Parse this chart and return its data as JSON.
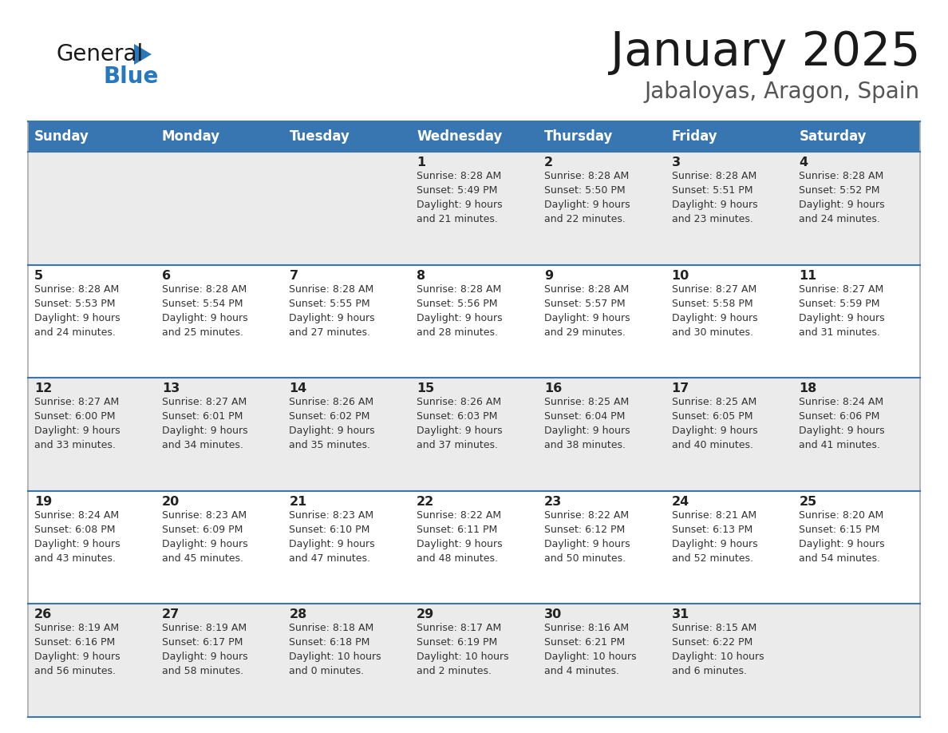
{
  "title": "January 2025",
  "subtitle": "Jabaloyas, Aragon, Spain",
  "days_of_week": [
    "Sunday",
    "Monday",
    "Tuesday",
    "Wednesday",
    "Thursday",
    "Friday",
    "Saturday"
  ],
  "header_bg": "#3776b0",
  "header_text": "#ffffff",
  "row_bg_odd": "#ebebeb",
  "row_bg_even": "#ffffff",
  "divider_color": "#3776b0",
  "cell_text_color": "#333333",
  "day_num_color": "#222222",
  "weeks": [
    [
      {
        "day": null,
        "info": null
      },
      {
        "day": null,
        "info": null
      },
      {
        "day": null,
        "info": null
      },
      {
        "day": 1,
        "info": "Sunrise: 8:28 AM\nSunset: 5:49 PM\nDaylight: 9 hours\nand 21 minutes."
      },
      {
        "day": 2,
        "info": "Sunrise: 8:28 AM\nSunset: 5:50 PM\nDaylight: 9 hours\nand 22 minutes."
      },
      {
        "day": 3,
        "info": "Sunrise: 8:28 AM\nSunset: 5:51 PM\nDaylight: 9 hours\nand 23 minutes."
      },
      {
        "day": 4,
        "info": "Sunrise: 8:28 AM\nSunset: 5:52 PM\nDaylight: 9 hours\nand 24 minutes."
      }
    ],
    [
      {
        "day": 5,
        "info": "Sunrise: 8:28 AM\nSunset: 5:53 PM\nDaylight: 9 hours\nand 24 minutes."
      },
      {
        "day": 6,
        "info": "Sunrise: 8:28 AM\nSunset: 5:54 PM\nDaylight: 9 hours\nand 25 minutes."
      },
      {
        "day": 7,
        "info": "Sunrise: 8:28 AM\nSunset: 5:55 PM\nDaylight: 9 hours\nand 27 minutes."
      },
      {
        "day": 8,
        "info": "Sunrise: 8:28 AM\nSunset: 5:56 PM\nDaylight: 9 hours\nand 28 minutes."
      },
      {
        "day": 9,
        "info": "Sunrise: 8:28 AM\nSunset: 5:57 PM\nDaylight: 9 hours\nand 29 minutes."
      },
      {
        "day": 10,
        "info": "Sunrise: 8:27 AM\nSunset: 5:58 PM\nDaylight: 9 hours\nand 30 minutes."
      },
      {
        "day": 11,
        "info": "Sunrise: 8:27 AM\nSunset: 5:59 PM\nDaylight: 9 hours\nand 31 minutes."
      }
    ],
    [
      {
        "day": 12,
        "info": "Sunrise: 8:27 AM\nSunset: 6:00 PM\nDaylight: 9 hours\nand 33 minutes."
      },
      {
        "day": 13,
        "info": "Sunrise: 8:27 AM\nSunset: 6:01 PM\nDaylight: 9 hours\nand 34 minutes."
      },
      {
        "day": 14,
        "info": "Sunrise: 8:26 AM\nSunset: 6:02 PM\nDaylight: 9 hours\nand 35 minutes."
      },
      {
        "day": 15,
        "info": "Sunrise: 8:26 AM\nSunset: 6:03 PM\nDaylight: 9 hours\nand 37 minutes."
      },
      {
        "day": 16,
        "info": "Sunrise: 8:25 AM\nSunset: 6:04 PM\nDaylight: 9 hours\nand 38 minutes."
      },
      {
        "day": 17,
        "info": "Sunrise: 8:25 AM\nSunset: 6:05 PM\nDaylight: 9 hours\nand 40 minutes."
      },
      {
        "day": 18,
        "info": "Sunrise: 8:24 AM\nSunset: 6:06 PM\nDaylight: 9 hours\nand 41 minutes."
      }
    ],
    [
      {
        "day": 19,
        "info": "Sunrise: 8:24 AM\nSunset: 6:08 PM\nDaylight: 9 hours\nand 43 minutes."
      },
      {
        "day": 20,
        "info": "Sunrise: 8:23 AM\nSunset: 6:09 PM\nDaylight: 9 hours\nand 45 minutes."
      },
      {
        "day": 21,
        "info": "Sunrise: 8:23 AM\nSunset: 6:10 PM\nDaylight: 9 hours\nand 47 minutes."
      },
      {
        "day": 22,
        "info": "Sunrise: 8:22 AM\nSunset: 6:11 PM\nDaylight: 9 hours\nand 48 minutes."
      },
      {
        "day": 23,
        "info": "Sunrise: 8:22 AM\nSunset: 6:12 PM\nDaylight: 9 hours\nand 50 minutes."
      },
      {
        "day": 24,
        "info": "Sunrise: 8:21 AM\nSunset: 6:13 PM\nDaylight: 9 hours\nand 52 minutes."
      },
      {
        "day": 25,
        "info": "Sunrise: 8:20 AM\nSunset: 6:15 PM\nDaylight: 9 hours\nand 54 minutes."
      }
    ],
    [
      {
        "day": 26,
        "info": "Sunrise: 8:19 AM\nSunset: 6:16 PM\nDaylight: 9 hours\nand 56 minutes."
      },
      {
        "day": 27,
        "info": "Sunrise: 8:19 AM\nSunset: 6:17 PM\nDaylight: 9 hours\nand 58 minutes."
      },
      {
        "day": 28,
        "info": "Sunrise: 8:18 AM\nSunset: 6:18 PM\nDaylight: 10 hours\nand 0 minutes."
      },
      {
        "day": 29,
        "info": "Sunrise: 8:17 AM\nSunset: 6:19 PM\nDaylight: 10 hours\nand 2 minutes."
      },
      {
        "day": 30,
        "info": "Sunrise: 8:16 AM\nSunset: 6:21 PM\nDaylight: 10 hours\nand 4 minutes."
      },
      {
        "day": 31,
        "info": "Sunrise: 8:15 AM\nSunset: 6:22 PM\nDaylight: 10 hours\nand 6 minutes."
      },
      {
        "day": null,
        "info": null
      }
    ]
  ],
  "logo_general_color": "#1a1a1a",
  "logo_blue_color": "#2878be",
  "title_color": "#1a1a1a",
  "subtitle_color": "#555555",
  "fig_width": 11.88,
  "fig_height": 9.18,
  "dpi": 100
}
